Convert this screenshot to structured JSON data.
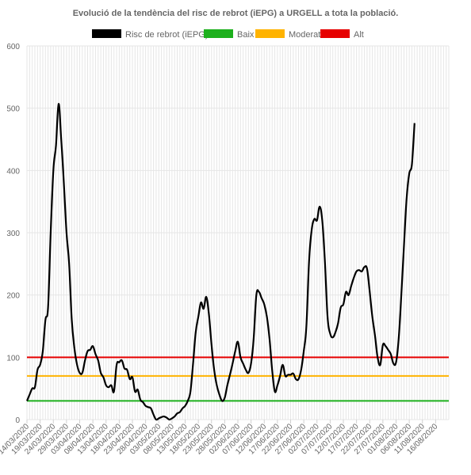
{
  "chart_data": {
    "type": "line",
    "title": "Evolució de la tendència del risc de rebrot (iEPG) a URGELL a tota la població.",
    "xlabel": "",
    "ylabel": "",
    "ylim": [
      0,
      600
    ],
    "yticks": [
      0,
      100,
      200,
      300,
      400,
      500,
      600
    ],
    "grid": true,
    "legend_position": "top",
    "x_start": "14/03/2020",
    "x_end": "21/08/2020",
    "x_tick_labels": [
      "14/03/2020",
      "19/03/2020",
      "24/03/2020",
      "29/03/2020",
      "03/04/2020",
      "08/04/2020",
      "13/04/2020",
      "18/04/2020",
      "23/04/2020",
      "28/04/2020",
      "03/05/2020",
      "08/05/2020",
      "13/05/2020",
      "18/05/2020",
      "23/05/2020",
      "28/05/2020",
      "02/06/2020",
      "07/06/2020",
      "12/06/2020",
      "17/06/2020",
      "22/06/2020",
      "27/06/2020",
      "02/07/2020",
      "07/07/2020",
      "12/07/2020",
      "17/07/2020",
      "22/07/2020",
      "27/07/2020",
      "01/08/2020",
      "06/08/2020",
      "11/08/2020",
      "16/08/2020"
    ],
    "series": [
      {
        "name": "Risc de rebrot (iEPG)",
        "color": "#000000",
        "points": [
          [
            "14/03/2020",
            30
          ],
          [
            "15/03/2020",
            40
          ],
          [
            "16/03/2020",
            50
          ],
          [
            "17/03/2020",
            52
          ],
          [
            "18/03/2020",
            80
          ],
          [
            "19/03/2020",
            88
          ],
          [
            "20/03/2020",
            110
          ],
          [
            "21/03/2020",
            160
          ],
          [
            "22/03/2020",
            180
          ],
          [
            "23/03/2020",
            300
          ],
          [
            "24/03/2020",
            400
          ],
          [
            "25/03/2020",
            440
          ],
          [
            "26/03/2020",
            507
          ],
          [
            "27/03/2020",
            450
          ],
          [
            "28/03/2020",
            380
          ],
          [
            "29/03/2020",
            300
          ],
          [
            "30/03/2020",
            250
          ],
          [
            "31/03/2020",
            160
          ],
          [
            "01/04/2020",
            115
          ],
          [
            "02/04/2020",
            88
          ],
          [
            "03/04/2020",
            75
          ],
          [
            "04/04/2020",
            75
          ],
          [
            "05/04/2020",
            95
          ],
          [
            "06/04/2020",
            110
          ],
          [
            "07/04/2020",
            112
          ],
          [
            "08/04/2020",
            118
          ],
          [
            "09/04/2020",
            105
          ],
          [
            "10/04/2020",
            95
          ],
          [
            "11/04/2020",
            75
          ],
          [
            "12/04/2020",
            68
          ],
          [
            "13/04/2020",
            55
          ],
          [
            "14/04/2020",
            52
          ],
          [
            "15/04/2020",
            55
          ],
          [
            "16/04/2020",
            45
          ],
          [
            "17/04/2020",
            88
          ],
          [
            "18/04/2020",
            92
          ],
          [
            "19/04/2020",
            95
          ],
          [
            "20/04/2020",
            82
          ],
          [
            "21/04/2020",
            80
          ],
          [
            "22/04/2020",
            65
          ],
          [
            "23/04/2020",
            68
          ],
          [
            "24/04/2020",
            45
          ],
          [
            "25/04/2020",
            48
          ],
          [
            "26/04/2020",
            32
          ],
          [
            "27/04/2020",
            28
          ],
          [
            "28/04/2020",
            22
          ],
          [
            "29/04/2020",
            20
          ],
          [
            "30/04/2020",
            18
          ],
          [
            "01/05/2020",
            8
          ],
          [
            "02/05/2020",
            0
          ],
          [
            "03/05/2020",
            2
          ],
          [
            "04/05/2020",
            4
          ],
          [
            "05/05/2020",
            5
          ],
          [
            "06/05/2020",
            3
          ],
          [
            "07/05/2020",
            0
          ],
          [
            "08/05/2020",
            2
          ],
          [
            "09/05/2020",
            5
          ],
          [
            "10/05/2020",
            10
          ],
          [
            "11/05/2020",
            12
          ],
          [
            "12/05/2020",
            18
          ],
          [
            "13/05/2020",
            22
          ],
          [
            "14/05/2020",
            30
          ],
          [
            "15/05/2020",
            45
          ],
          [
            "16/05/2020",
            90
          ],
          [
            "17/05/2020",
            140
          ],
          [
            "18/05/2020",
            165
          ],
          [
            "19/05/2020",
            188
          ],
          [
            "20/05/2020",
            178
          ],
          [
            "21/05/2020",
            197
          ],
          [
            "22/05/2020",
            170
          ],
          [
            "23/05/2020",
            120
          ],
          [
            "24/05/2020",
            80
          ],
          [
            "25/05/2020",
            55
          ],
          [
            "26/05/2020",
            40
          ],
          [
            "27/05/2020",
            30
          ],
          [
            "28/05/2020",
            35
          ],
          [
            "29/05/2020",
            55
          ],
          [
            "30/05/2020",
            72
          ],
          [
            "31/05/2020",
            90
          ],
          [
            "01/06/2020",
            110
          ],
          [
            "02/06/2020",
            125
          ],
          [
            "03/06/2020",
            100
          ],
          [
            "04/06/2020",
            90
          ],
          [
            "05/06/2020",
            80
          ],
          [
            "06/06/2020",
            75
          ],
          [
            "07/06/2020",
            90
          ],
          [
            "08/06/2020",
            130
          ],
          [
            "09/06/2020",
            200
          ],
          [
            "10/06/2020",
            205
          ],
          [
            "11/06/2020",
            195
          ],
          [
            "12/06/2020",
            185
          ],
          [
            "13/06/2020",
            165
          ],
          [
            "14/06/2020",
            130
          ],
          [
            "15/06/2020",
            80
          ],
          [
            "16/06/2020",
            45
          ],
          [
            "17/06/2020",
            55
          ],
          [
            "18/06/2020",
            70
          ],
          [
            "19/06/2020",
            88
          ],
          [
            "20/06/2020",
            70
          ],
          [
            "21/06/2020",
            72
          ],
          [
            "22/06/2020",
            72
          ],
          [
            "23/06/2020",
            74
          ],
          [
            "24/06/2020",
            65
          ],
          [
            "25/06/2020",
            65
          ],
          [
            "26/06/2020",
            80
          ],
          [
            "27/06/2020",
            110
          ],
          [
            "28/06/2020",
            150
          ],
          [
            "29/06/2020",
            255
          ],
          [
            "30/06/2020",
            305
          ],
          [
            "01/07/2020",
            322
          ],
          [
            "02/07/2020",
            320
          ],
          [
            "03/07/2020",
            342
          ],
          [
            "04/07/2020",
            320
          ],
          [
            "05/07/2020",
            255
          ],
          [
            "06/07/2020",
            165
          ],
          [
            "07/07/2020",
            138
          ],
          [
            "08/07/2020",
            132
          ],
          [
            "09/07/2020",
            140
          ],
          [
            "10/07/2020",
            155
          ],
          [
            "11/07/2020",
            180
          ],
          [
            "12/07/2020",
            185
          ],
          [
            "13/07/2020",
            205
          ],
          [
            "14/07/2020",
            200
          ],
          [
            "15/07/2020",
            215
          ],
          [
            "16/07/2020",
            228
          ],
          [
            "17/07/2020",
            238
          ],
          [
            "18/07/2020",
            240
          ],
          [
            "19/07/2020",
            238
          ],
          [
            "20/07/2020",
            245
          ],
          [
            "21/07/2020",
            242
          ],
          [
            "22/07/2020",
            205
          ],
          [
            "23/07/2020",
            165
          ],
          [
            "24/07/2020",
            135
          ],
          [
            "25/07/2020",
            100
          ],
          [
            "26/07/2020",
            88
          ],
          [
            "27/07/2020",
            120
          ],
          [
            "28/07/2020",
            118
          ],
          [
            "29/07/2020",
            112
          ],
          [
            "30/07/2020",
            105
          ],
          [
            "31/07/2020",
            90
          ],
          [
            "01/08/2020",
            92
          ],
          [
            "02/08/2020",
            130
          ],
          [
            "03/08/2020",
            200
          ],
          [
            "04/08/2020",
            280
          ],
          [
            "05/08/2020",
            355
          ],
          [
            "06/08/2020",
            395
          ],
          [
            "07/08/2020",
            410
          ],
          [
            "08/08/2020",
            476
          ]
        ]
      },
      {
        "name": "Baix",
        "color": "#1db01d",
        "constant": 30
      },
      {
        "name": "Moderat",
        "color": "#ffb300",
        "constant": 70
      },
      {
        "name": "Alt",
        "color": "#e60000",
        "constant": 100
      }
    ]
  }
}
